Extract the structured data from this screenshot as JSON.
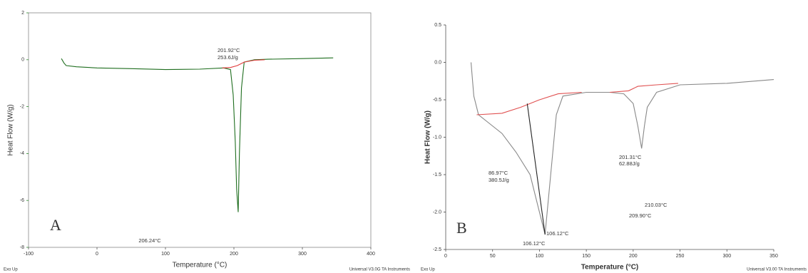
{
  "chart_data": [
    {
      "type": "line",
      "title_letter": "A",
      "x_label": "Temperature (°C)",
      "y_label": "Heat Flow (W/g)",
      "xlim": [
        -100,
        400
      ],
      "xticks": [
        -100,
        0,
        100,
        200,
        300,
        400
      ],
      "ylim": [
        -8,
        2
      ],
      "yticks": [
        -8,
        -6,
        -4,
        -2,
        0,
        2
      ],
      "axis_color": "#2a8a2a",
      "series": [
        {
          "color": "#1f6e1f",
          "x": [
            -52,
            -48,
            -45,
            -30,
            0,
            50,
            100,
            150,
            185,
            195,
            199,
            202,
            204,
            206.24,
            208,
            211,
            215,
            230,
            250,
            300,
            345
          ],
          "values": [
            0.05,
            -0.15,
            -0.25,
            -0.3,
            -0.35,
            -0.38,
            -0.42,
            -0.4,
            -0.35,
            -0.42,
            -1.5,
            -3.5,
            -5.5,
            -6.5,
            -4,
            -1.2,
            -0.1,
            0.0,
            0.02,
            0.05,
            0.08
          ]
        },
        {
          "color": "#e03a3a",
          "x": [
            183,
            195,
            205,
            215,
            230,
            245
          ],
          "values": [
            -0.35,
            -0.33,
            -0.25,
            -0.1,
            -0.02,
            0.0
          ]
        }
      ],
      "annotations": [
        "201.92°C",
        "253.6J/g",
        "206.24°C"
      ],
      "footer_left": "Exo Up",
      "footer_right": "Universal V3.0G TA Instruments"
    },
    {
      "type": "line",
      "title_letter": "B",
      "x_label": "Temperature (°C)",
      "y_label": "Heat Flow (W/g)",
      "xlim": [
        0,
        350
      ],
      "xticks": [
        0,
        50,
        100,
        150,
        200,
        250,
        300,
        350
      ],
      "ylim": [
        -2.5,
        0.5
      ],
      "yticks": [
        -2.5,
        {
          "value": -2,
          "label": "-2.0"
        },
        -1.5,
        {
          "value": -1,
          "label": "-1.0"
        },
        -0.5,
        {
          "value": 0,
          "label": "0.0"
        },
        0.5
      ],
      "axis_color": "#444444",
      "series": [
        {
          "color": "#888888",
          "x": [
            27,
            30,
            35,
            45,
            60,
            75,
            90,
            100,
            106,
            112,
            118,
            125,
            150,
            175,
            190,
            200,
            205,
            209,
            212,
            215,
            225,
            250,
            300,
            350
          ],
          "values": [
            0.0,
            -0.45,
            -0.7,
            -0.8,
            -0.95,
            -1.2,
            -1.5,
            -2.0,
            -2.3,
            -1.5,
            -0.7,
            -0.45,
            -0.4,
            -0.4,
            -0.42,
            -0.55,
            -0.85,
            -1.15,
            -0.85,
            -0.6,
            -0.4,
            -0.3,
            -0.28,
            -0.23
          ]
        },
        {
          "color": "#e05050",
          "x": [
            33,
            60,
            80,
            100,
            120,
            145
          ],
          "values": [
            -0.7,
            -0.68,
            -0.6,
            -0.5,
            -0.42,
            -0.4
          ]
        },
        {
          "color": "#e05050",
          "x": [
            175,
            195,
            205,
            225,
            248
          ],
          "values": [
            -0.4,
            -0.38,
            -0.32,
            -0.3,
            -0.28
          ]
        },
        {
          "color": "#222222",
          "x": [
            87,
            106
          ],
          "values": [
            -0.55,
            -2.3
          ]
        }
      ],
      "annotations": [
        "86.97°C",
        "380.5J/g",
        "201.31°C",
        "62.88J/g",
        "210.03°C",
        "209.90°C",
        "106.12°C",
        "106.12°C"
      ],
      "footer_left": "Exo Up",
      "footer_right": "Universal V3.00 TA Instruments"
    }
  ]
}
